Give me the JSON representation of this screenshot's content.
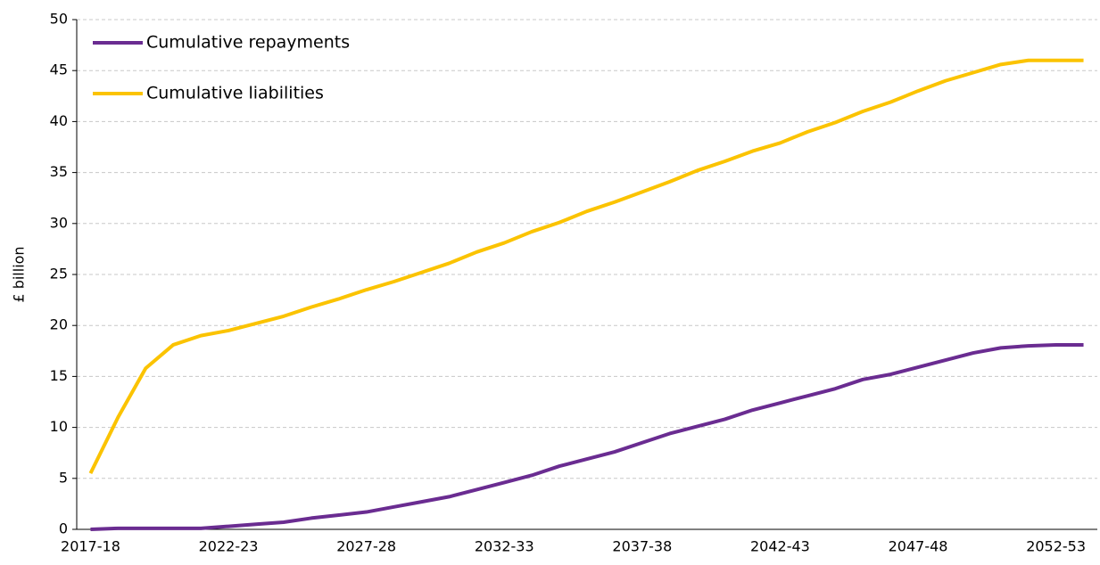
{
  "chart_data": {
    "type": "line",
    "y_label": "£ billion",
    "categories": [
      "2017-18",
      null,
      null,
      null,
      null,
      "2022-23",
      null,
      null,
      null,
      null,
      "2027-28",
      null,
      null,
      null,
      null,
      "2032-33",
      null,
      null,
      null,
      null,
      "2037-38",
      null,
      null,
      null,
      null,
      "2042-43",
      null,
      null,
      null,
      null,
      "2047-48",
      null,
      null,
      null,
      null,
      "2052-53",
      null
    ],
    "series": [
      {
        "name": "Cumulative repayments",
        "color": "#6a2c91",
        "values": [
          0,
          0.1,
          0.1,
          0.1,
          0.1,
          0.3,
          0.5,
          0.7,
          1.1,
          1.4,
          1.7,
          2.2,
          2.7,
          3.2,
          3.9,
          4.6,
          5.3,
          6.2,
          6.9,
          7.6,
          8.5,
          9.4,
          10.1,
          10.8,
          11.7,
          12.4,
          13.1,
          13.8,
          14.7,
          15.2,
          15.9,
          16.6,
          17.3,
          17.8,
          18,
          18.1,
          18.1
        ]
      },
      {
        "name": "Cumulative liabilities",
        "color": "#fbc300",
        "values": [
          5.5,
          11,
          15.8,
          18.1,
          19,
          19.5,
          20.2,
          20.9,
          21.8,
          22.6,
          23.5,
          24.3,
          25.2,
          26.1,
          27.2,
          28.1,
          29.2,
          30.1,
          31.2,
          32.1,
          33.1,
          34.1,
          35.2,
          36.1,
          37.1,
          37.9,
          39,
          39.9,
          41,
          41.9,
          43,
          44,
          44.8,
          45.6,
          46,
          46,
          46
        ]
      }
    ],
    "ylim": [
      0,
      50
    ],
    "yticks": [
      0,
      5,
      10,
      15,
      20,
      25,
      30,
      35,
      40,
      45,
      50
    ],
    "grid": true,
    "legend": "top-left"
  }
}
